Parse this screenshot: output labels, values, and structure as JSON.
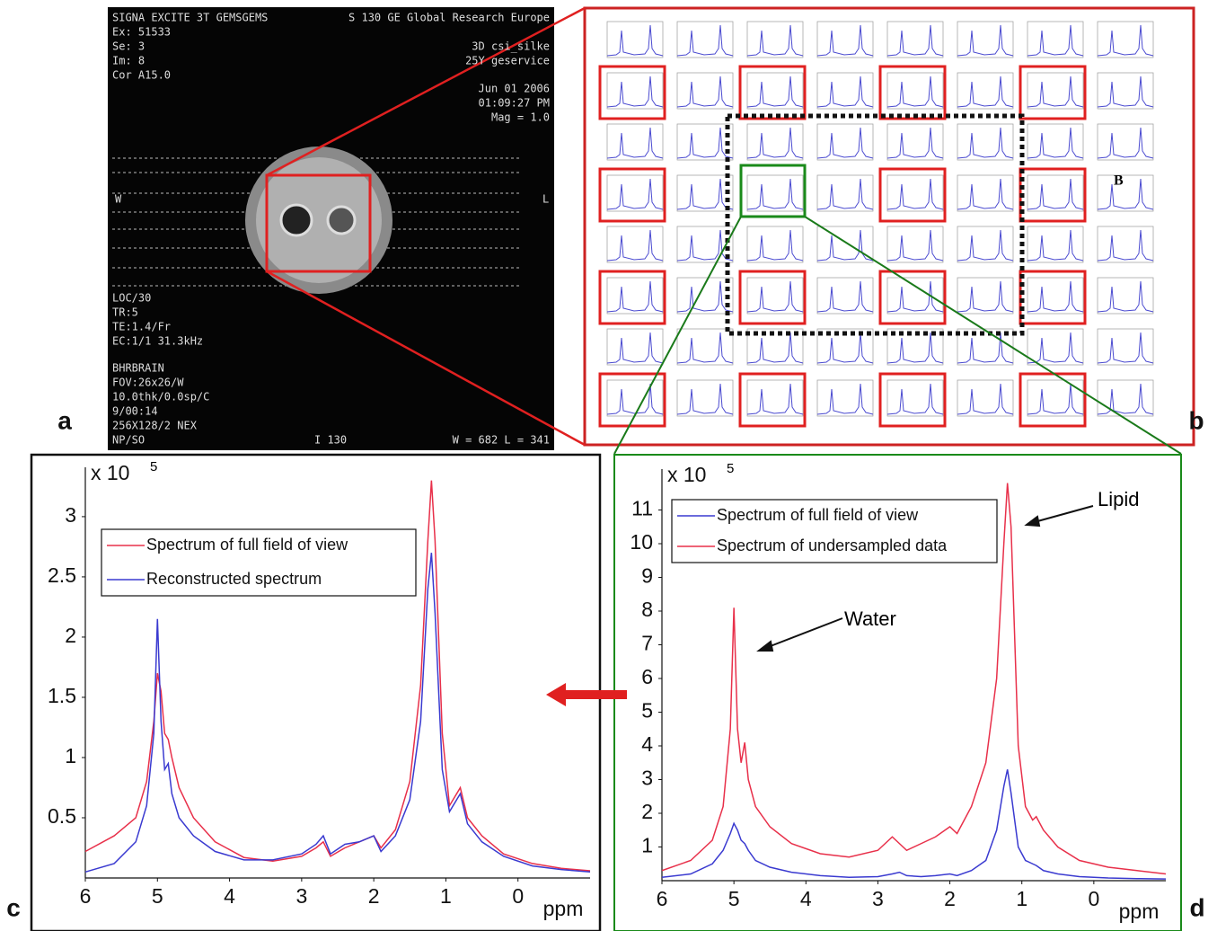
{
  "panel_labels": [
    "a",
    "b",
    "c",
    "d"
  ],
  "panel_a": {
    "header_left": "SIGNA EXCITE 3T GEMSGEMS",
    "header_right": "S 130 GE Global Research Europe",
    "left_lines": [
      "Ex: 51533",
      "Se: 3",
      "Im: 8",
      "Cor A15.0"
    ],
    "right_lines": [
      "3D csi_silke",
      "25Y geservice",
      "Jun 01 2006",
      "01:09:27 PM",
      "Mag = 1.0"
    ],
    "side_left": "W",
    "side_right": "L",
    "bottom_lines": [
      "LOC/30",
      "TR:5",
      "TE:1.4/Fr",
      "EC:1/1 31.3kHz",
      "BHRBRAIN",
      "FOV:26x26/W",
      "10.0thk/0.0sp/C",
      "9/00:14",
      "256X128/2 NEX",
      "NP/SO"
    ],
    "footer_center": "I 130",
    "footer_right": "W =   682 L =   341"
  },
  "panel_b": {
    "marker": "B"
  },
  "chart_data": [
    {
      "type": "line",
      "multiplier": "x 10",
      "exponent": "5",
      "x_label": "ppm",
      "x": [
        6,
        5.6,
        5.3,
        5.15,
        5.05,
        5,
        4.95,
        4.9,
        4.85,
        4.8,
        4.7,
        4.5,
        4.2,
        3.8,
        3.4,
        3,
        2.8,
        2.7,
        2.6,
        2.4,
        2.2,
        2,
        1.9,
        1.7,
        1.5,
        1.35,
        1.25,
        1.2,
        1.15,
        1.05,
        0.95,
        0.85,
        0.8,
        0.7,
        0.5,
        0.2,
        -0.2,
        -0.6,
        -1
      ],
      "xlim": [
        6,
        -1
      ],
      "xticks": [
        6,
        5,
        4,
        3,
        2,
        1,
        0
      ],
      "ylim": [
        0,
        3.35
      ],
      "yticks": [
        0.5,
        1,
        1.5,
        2,
        2.5,
        3
      ],
      "series": [
        {
          "name": "Spectrum of full field of view",
          "color": "#e8304a",
          "values": [
            0.22,
            0.35,
            0.5,
            0.8,
            1.3,
            1.7,
            1.55,
            1.2,
            1.15,
            1.0,
            0.75,
            0.5,
            0.3,
            0.17,
            0.14,
            0.18,
            0.25,
            0.3,
            0.18,
            0.25,
            0.3,
            0.35,
            0.25,
            0.4,
            0.8,
            1.6,
            2.8,
            3.3,
            2.8,
            1.2,
            0.6,
            0.7,
            0.75,
            0.5,
            0.35,
            0.2,
            0.12,
            0.08,
            0.06
          ]
        },
        {
          "name": "Reconstructed spectrum",
          "color": "#3a3ad0",
          "values": [
            0.05,
            0.12,
            0.3,
            0.6,
            1.2,
            2.15,
            1.3,
            0.9,
            0.95,
            0.7,
            0.5,
            0.35,
            0.22,
            0.15,
            0.15,
            0.2,
            0.28,
            0.35,
            0.2,
            0.28,
            0.3,
            0.35,
            0.22,
            0.35,
            0.65,
            1.3,
            2.4,
            2.7,
            2.2,
            0.9,
            0.55,
            0.65,
            0.7,
            0.45,
            0.3,
            0.18,
            0.1,
            0.07,
            0.05
          ]
        }
      ]
    },
    {
      "type": "line",
      "multiplier": "x 10",
      "exponent": "5",
      "x_label": "ppm",
      "annotations": [
        "Water",
        "Lipid"
      ],
      "x": [
        6,
        5.6,
        5.3,
        5.15,
        5.05,
        5,
        4.95,
        4.9,
        4.85,
        4.8,
        4.7,
        4.5,
        4.2,
        3.8,
        3.4,
        3,
        2.8,
        2.7,
        2.6,
        2.4,
        2.2,
        2,
        1.9,
        1.7,
        1.5,
        1.35,
        1.25,
        1.2,
        1.15,
        1.05,
        0.95,
        0.85,
        0.8,
        0.7,
        0.5,
        0.2,
        -0.2,
        -0.6,
        -1
      ],
      "xlim": [
        6,
        -1
      ],
      "xticks": [
        6,
        5,
        4,
        3,
        2,
        1,
        0
      ],
      "ylim": [
        0,
        12
      ],
      "yticks": [
        1,
        2,
        3,
        4,
        5,
        6,
        7,
        8,
        9,
        10,
        11
      ],
      "series": [
        {
          "name": "Spectrum of full field of view",
          "color": "#3a3ad0",
          "values": [
            0.1,
            0.2,
            0.5,
            0.9,
            1.4,
            1.7,
            1.5,
            1.2,
            1.1,
            0.9,
            0.6,
            0.4,
            0.25,
            0.15,
            0.1,
            0.12,
            0.2,
            0.25,
            0.15,
            0.12,
            0.15,
            0.2,
            0.15,
            0.3,
            0.6,
            1.5,
            2.8,
            3.3,
            2.6,
            1.0,
            0.6,
            0.5,
            0.45,
            0.3,
            0.2,
            0.12,
            0.08,
            0.06,
            0.05
          ]
        },
        {
          "name": "Spectrum of undersampled data",
          "color": "#e8304a",
          "values": [
            0.3,
            0.6,
            1.2,
            2.2,
            4.5,
            8.1,
            4.5,
            3.5,
            4.1,
            3.0,
            2.2,
            1.6,
            1.1,
            0.8,
            0.7,
            0.9,
            1.3,
            1.1,
            0.9,
            1.1,
            1.3,
            1.6,
            1.4,
            2.2,
            3.5,
            6,
            10,
            11.8,
            10.5,
            4,
            2.2,
            1.8,
            1.9,
            1.5,
            1.0,
            0.6,
            0.4,
            0.3,
            0.2
          ]
        }
      ]
    }
  ]
}
